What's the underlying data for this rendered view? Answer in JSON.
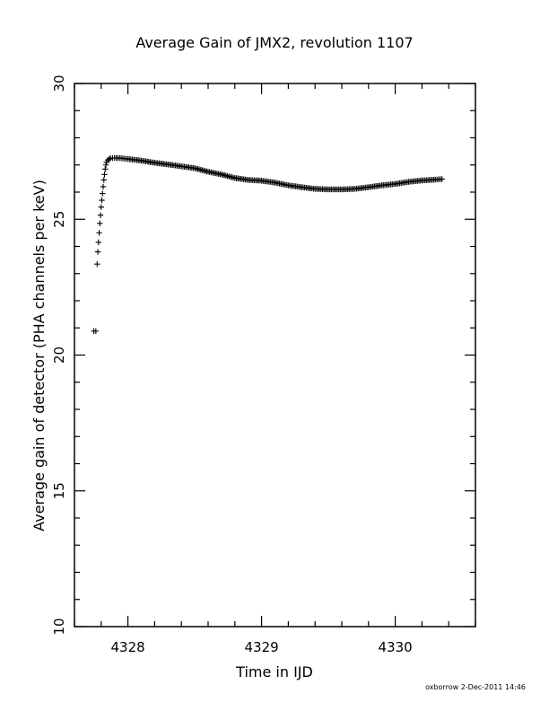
{
  "chart_data": {
    "type": "scatter",
    "title": "Average Gain of JMX2, revolution 1107",
    "xlabel": "Time in IJD",
    "ylabel": "Average gain of detector (PHA channels per keV)",
    "xlim": [
      4327.6,
      4330.6
    ],
    "ylim": [
      10,
      30
    ],
    "x_major_ticks": [
      4328,
      4329,
      4330
    ],
    "x_tick_labels": [
      "4328",
      "4329",
      "4330"
    ],
    "y_major_ticks": [
      10,
      15,
      20,
      25,
      30
    ],
    "y_tick_labels": [
      "10",
      "15",
      "20",
      "25",
      "30"
    ],
    "grid": false,
    "marker": "plus",
    "series": [
      {
        "points": [
          [
            4327.745,
            20.88
          ],
          [
            4327.76,
            20.88
          ],
          [
            4327.77,
            23.35
          ],
          [
            4327.775,
            23.8
          ],
          [
            4327.78,
            24.15
          ],
          [
            4327.785,
            24.5
          ],
          [
            4327.79,
            24.85
          ],
          [
            4327.795,
            25.15
          ],
          [
            4327.8,
            25.45
          ],
          [
            4327.805,
            25.7
          ],
          [
            4327.81,
            25.95
          ],
          [
            4327.815,
            26.2
          ],
          [
            4327.82,
            26.45
          ],
          [
            4327.825,
            26.65
          ],
          [
            4327.83,
            26.85
          ],
          [
            4327.835,
            27.0
          ],
          [
            4327.84,
            27.1
          ],
          [
            4327.85,
            27.18
          ],
          [
            4327.86,
            27.22
          ],
          [
            4327.87,
            27.25
          ],
          [
            4327.9,
            27.26
          ],
          [
            4327.95,
            27.25
          ],
          [
            4328.0,
            27.22
          ],
          [
            4328.1,
            27.16
          ],
          [
            4328.2,
            27.08
          ],
          [
            4328.3,
            27.02
          ],
          [
            4328.4,
            26.95
          ],
          [
            4328.5,
            26.88
          ],
          [
            4328.6,
            26.75
          ],
          [
            4328.7,
            26.65
          ],
          [
            4328.8,
            26.52
          ],
          [
            4328.9,
            26.45
          ],
          [
            4329.0,
            26.42
          ],
          [
            4329.1,
            26.35
          ],
          [
            4329.2,
            26.25
          ],
          [
            4329.3,
            26.18
          ],
          [
            4329.4,
            26.12
          ],
          [
            4329.5,
            26.1
          ],
          [
            4329.6,
            26.1
          ],
          [
            4329.7,
            26.12
          ],
          [
            4329.8,
            26.18
          ],
          [
            4329.9,
            26.25
          ],
          [
            4330.0,
            26.3
          ],
          [
            4330.1,
            26.38
          ],
          [
            4330.2,
            26.43
          ],
          [
            4330.3,
            26.46
          ],
          [
            4330.35,
            26.48
          ]
        ]
      }
    ]
  },
  "footer": {
    "credit": "oxborrow  2-Dec-2011 14:46"
  }
}
